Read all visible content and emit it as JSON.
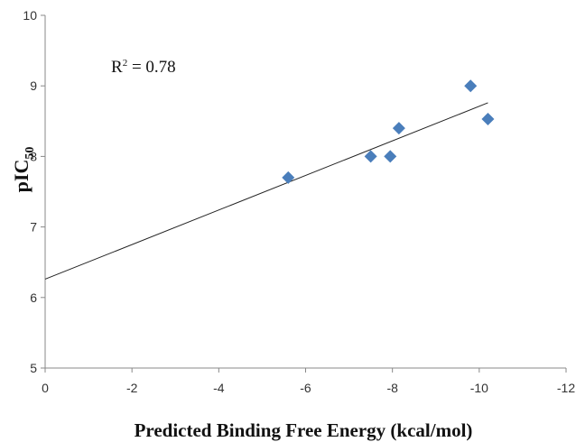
{
  "chart_data": {
    "type": "scatter",
    "xlabel": "Predicted Binding Free Energy (kcal/mol)",
    "ylabel": {
      "main": "pIC",
      "sub": "50"
    },
    "x_reversed": true,
    "xlim": [
      0,
      -12
    ],
    "ylim": [
      5,
      10
    ],
    "x_ticks": [
      0,
      -2,
      -4,
      -6,
      -8,
      -10,
      -12
    ],
    "y_ticks": [
      5,
      6,
      7,
      8,
      9,
      10
    ],
    "x_tick_labels": [
      "0",
      "-2",
      "-4",
      "-6",
      "-8",
      "-10",
      "-12"
    ],
    "y_tick_labels": [
      "5",
      "6",
      "7",
      "8",
      "9",
      "10"
    ],
    "grid": false,
    "marker": "diamond",
    "marker_color": "#4a7ebb",
    "series": [
      {
        "points": [
          {
            "x": -5.6,
            "y": 7.7
          },
          {
            "x": -7.5,
            "y": 8.0
          },
          {
            "x": -7.95,
            "y": 8.0
          },
          {
            "x": -8.15,
            "y": 8.4
          },
          {
            "x": -9.8,
            "y": 9.0
          },
          {
            "x": -10.2,
            "y": 8.53
          }
        ]
      }
    ],
    "trendline": {
      "x_start": 0,
      "y_start": 6.26,
      "x_end": -10.2,
      "y_end": 8.76
    },
    "annotation": {
      "r2_label": "R",
      "r2_sup": "2",
      "r2_value": " = 0.78"
    }
  }
}
